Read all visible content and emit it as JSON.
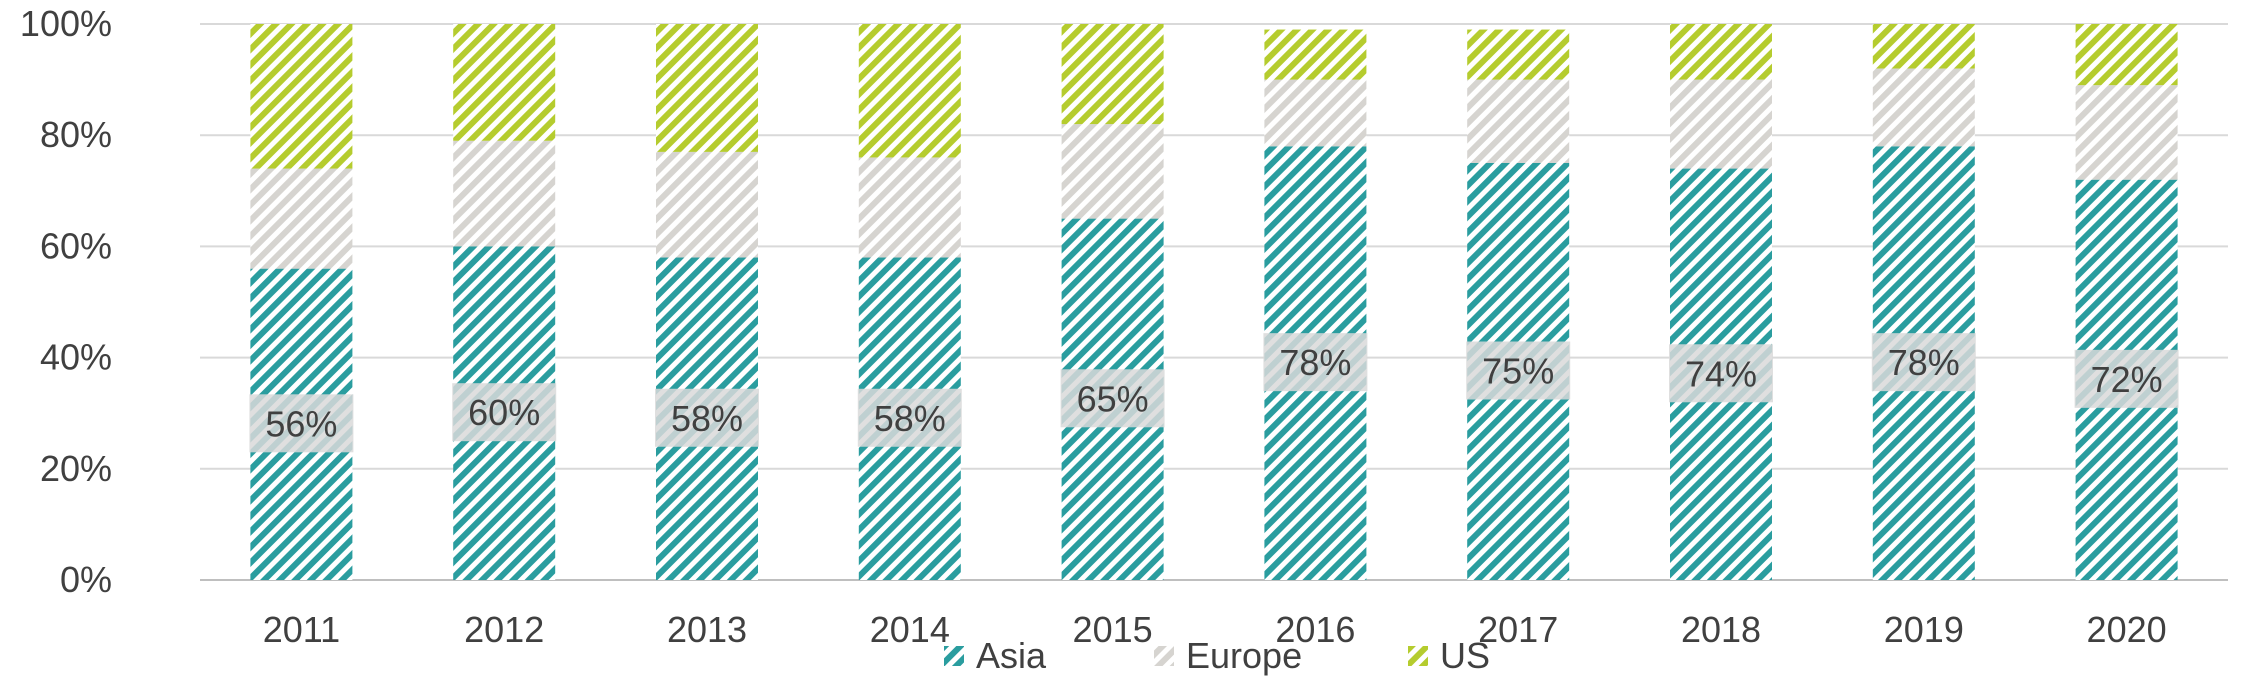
{
  "chart_data": {
    "type": "bar",
    "stacked": true,
    "percent": true,
    "categories": [
      "2011",
      "2012",
      "2013",
      "2014",
      "2015",
      "2016",
      "2017",
      "2018",
      "2019",
      "2020"
    ],
    "series": [
      {
        "name": "Asia",
        "values": [
          56,
          60,
          58,
          58,
          65,
          78,
          75,
          74,
          78,
          72
        ],
        "color": "#2a9d9f",
        "pattern": "diagonal-hatch"
      },
      {
        "name": "Europe",
        "values": [
          18,
          19,
          19,
          18,
          17,
          12,
          15,
          16,
          14,
          17
        ],
        "color": "#d6d4d0",
        "pattern": "diagonal-hatch"
      },
      {
        "name": "US",
        "values": [
          26,
          21,
          23,
          24,
          18,
          9,
          9,
          10,
          8,
          11
        ],
        "color": "#b5cc2e",
        "pattern": "diagonal-hatch"
      }
    ],
    "data_labels": {
      "series": "Asia",
      "texts": [
        "56%",
        "60%",
        "58%",
        "58%",
        "65%",
        "78%",
        "75%",
        "74%",
        "78%",
        "72%"
      ]
    },
    "y_ticks": [
      "0%",
      "20%",
      "40%",
      "60%",
      "80%",
      "100%"
    ],
    "ylim": [
      0,
      100
    ],
    "grid": true,
    "legend_position": "bottom",
    "title": "",
    "xlabel": "",
    "ylabel": ""
  }
}
